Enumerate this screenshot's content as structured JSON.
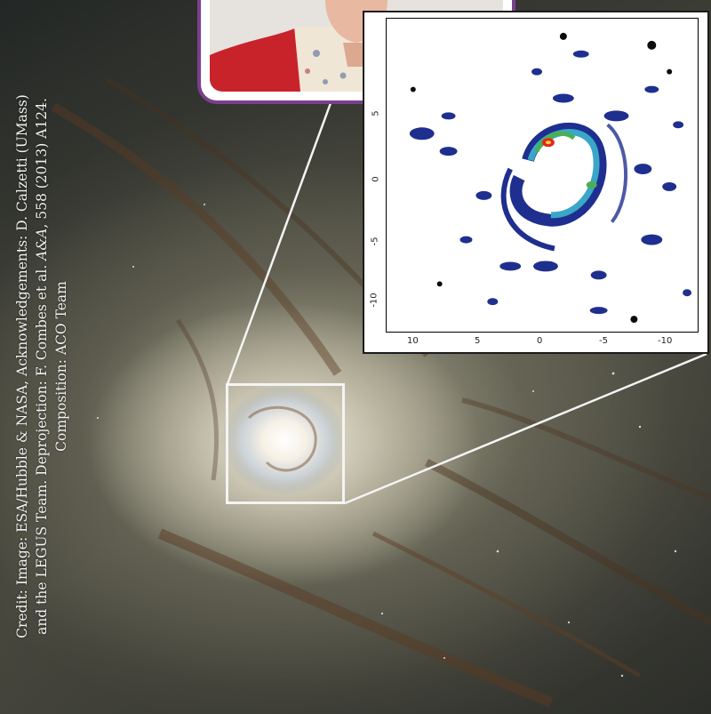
{
  "credit": {
    "line1": "Credit: Image: ESA/Hubble & NASA, Acknowledgements: D. Calzetti (UMass)",
    "line2_a": "and the LEGUS Team. Deprojection: F. Combes et al. ",
    "line2_b": "A&A",
    "line2_c": ", 558 (2013) A124.",
    "line3": "Composition: ACO Team"
  },
  "map": {
    "y_ticks": [
      "5",
      "0",
      "-5",
      "-10"
    ],
    "x_ticks": [
      "10",
      "5",
      "0",
      "-5",
      "-10"
    ]
  },
  "colors": {
    "portrait_border": "#7b3f8f",
    "zoom_box": "#f4f4f4",
    "map_blue": "#1f2f8f",
    "map_cyan": "#3aa6c8",
    "map_green": "#4caf50",
    "map_red": "#e0281e"
  }
}
